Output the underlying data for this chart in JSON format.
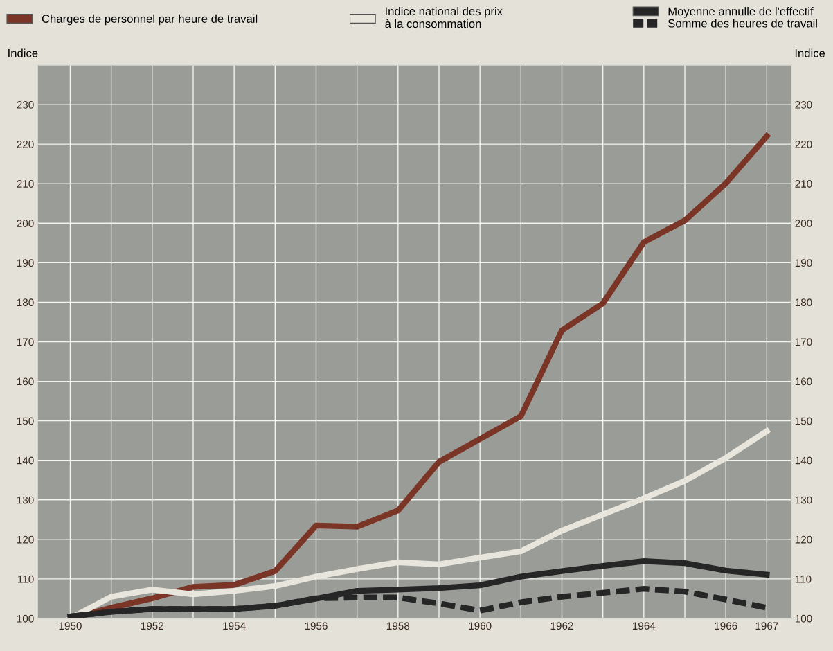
{
  "chart_data": {
    "type": "line",
    "ylabel": "Indice",
    "y2label": "Indice",
    "x": [
      1950,
      1951,
      1952,
      1953,
      1954,
      1955,
      1956,
      1957,
      1958,
      1959,
      1960,
      1961,
      1962,
      1963,
      1964,
      1965,
      1966,
      1967
    ],
    "series": [
      {
        "name": "Charges de personnel par heure de travail",
        "color": "#7a3526",
        "line_style": "solid",
        "values": [
          100,
          102.7,
          105.1,
          108,
          108.5,
          112,
          123.5,
          123.2,
          127.3,
          139.6,
          145.4,
          151.2,
          172.9,
          179.7,
          195.2,
          200.7,
          210.1,
          222
        ]
      },
      {
        "name": "Indice national des prix\nà la consommation",
        "color": "#e8e6dc",
        "line_style": "solid",
        "values": [
          100,
          105.5,
          107.3,
          106.1,
          107,
          108.2,
          110.6,
          112.5,
          114.2,
          113.7,
          115.4,
          117,
          122.2,
          126.3,
          130.4,
          134.8,
          140.6,
          147.4
        ]
      },
      {
        "name": "Moyenne annulle de l'effectif",
        "color": "#262626",
        "line_style": "solid",
        "values": [
          100.5,
          101.7,
          102.4,
          102.4,
          102.4,
          103.2,
          105,
          107,
          107.3,
          107.7,
          108.4,
          110.6,
          112,
          113.3,
          114.5,
          114,
          112.1,
          111.1
        ]
      },
      {
        "name": "Somme des heures de travail",
        "color": "#262626",
        "line_style": "dashed",
        "values": [
          100.5,
          101.7,
          102.4,
          102.4,
          102.4,
          103.2,
          105.1,
          105.3,
          105.3,
          103.8,
          102,
          104.1,
          105.5,
          106.5,
          107.5,
          106.8,
          104.8,
          102.7
        ]
      }
    ],
    "xlim": [
      1949.2,
      1967.6
    ],
    "xticks": [
      1950,
      {
        "value": 1951,
        "label": null
      },
      1952,
      {
        "value": 1953,
        "label": null
      },
      1954,
      {
        "value": 1955,
        "label": null
      },
      1956,
      {
        "value": 1957,
        "label": null
      },
      1958,
      {
        "value": 1959,
        "label": null
      },
      1960,
      {
        "value": 1961,
        "label": null
      },
      1962,
      {
        "value": 1963,
        "label": null
      },
      1964,
      {
        "value": 1965,
        "label": null
      },
      1966,
      1967
    ],
    "ylim": [
      100,
      240
    ],
    "yticks": [
      100,
      110,
      120,
      130,
      140,
      150,
      160,
      170,
      180,
      190,
      200,
      210,
      220,
      230
    ],
    "y2lim": [
      100,
      240
    ],
    "y2ticks": [
      100,
      110,
      120,
      130,
      140,
      150,
      160,
      170,
      180,
      190,
      200,
      210,
      220,
      230
    ],
    "grid": true,
    "legend": "top"
  }
}
